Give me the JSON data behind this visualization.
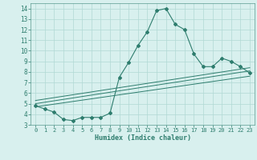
{
  "xlabel": "Humidex (Indice chaleur)",
  "background_color": "#d8f0ee",
  "line_color": "#2e7d6e",
  "xlim": [
    -0.5,
    23.5
  ],
  "ylim": [
    3,
    14.5
  ],
  "xticks": [
    0,
    1,
    2,
    3,
    4,
    5,
    6,
    7,
    8,
    9,
    10,
    11,
    12,
    13,
    14,
    15,
    16,
    17,
    18,
    19,
    20,
    21,
    22,
    23
  ],
  "yticks": [
    3,
    4,
    5,
    6,
    7,
    8,
    9,
    10,
    11,
    12,
    13,
    14
  ],
  "curve1_x": [
    0,
    1,
    2,
    3,
    4,
    5,
    6,
    7,
    8,
    9,
    10,
    11,
    12,
    13,
    14,
    15,
    16,
    17,
    18,
    19,
    20,
    21,
    22,
    23
  ],
  "curve1_y": [
    4.8,
    4.5,
    4.2,
    3.5,
    3.4,
    3.7,
    3.7,
    3.7,
    4.1,
    7.5,
    8.9,
    10.5,
    11.8,
    13.8,
    14.0,
    12.5,
    12.0,
    9.7,
    8.5,
    8.5,
    9.3,
    9.0,
    8.5,
    7.9
  ],
  "line2_x": [
    0,
    23
  ],
  "line2_y": [
    5.0,
    8.1
  ],
  "line3_x": [
    0,
    23
  ],
  "line3_y": [
    5.3,
    8.4
  ],
  "line4_x": [
    0,
    23
  ],
  "line4_y": [
    4.7,
    7.6
  ],
  "tick_fontsize": 5.0,
  "xlabel_fontsize": 6.0,
  "grid_color": "#b0d8d4",
  "spine_color": "#5a9a90"
}
